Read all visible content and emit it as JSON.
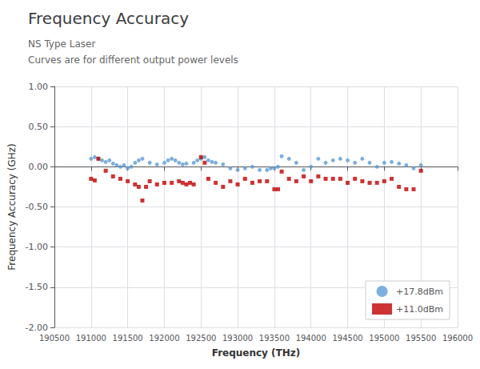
{
  "chart_data": {
    "type": "scatter",
    "title": "Frequency Accuracy",
    "subtitle": [
      "NS Type Laser",
      "Curves are for different output power levels"
    ],
    "x_label": "Frequency (THz)",
    "y_label": "Frequency Accuracy (GHz)",
    "xlim": [
      190500,
      196000
    ],
    "ylim": [
      -2.0,
      1.0
    ],
    "xticks": [
      190500,
      191000,
      191500,
      192000,
      192500,
      193000,
      193500,
      194000,
      194500,
      195000,
      195500,
      196000
    ],
    "yticks": [
      {
        "value": 1.0,
        "label": "1.00"
      },
      {
        "value": 0.5,
        "label": "0.50"
      },
      {
        "value": 0.0,
        "label": "0.00"
      },
      {
        "value": -0.5,
        "label": "-0.50"
      },
      {
        "value": -1.0,
        "label": "-1.00"
      },
      {
        "value": -1.5,
        "label": "-1.50"
      },
      {
        "value": -2.0,
        "label": "-2.00"
      }
    ],
    "grid": true,
    "legend": "lower right",
    "series": [
      {
        "name": "+17.8dBm",
        "color": "#5b9bd5",
        "marker": "circle",
        "x": [
          191000,
          191050,
          191100,
          191150,
          191200,
          191250,
          191300,
          191350,
          191400,
          191450,
          191500,
          191550,
          191600,
          191650,
          191700,
          191800,
          191900,
          192000,
          192050,
          192100,
          192150,
          192200,
          192250,
          192300,
          192400,
          192450,
          192500,
          192550,
          192600,
          192650,
          192700,
          192800,
          192900,
          193000,
          193100,
          193200,
          193300,
          193400,
          193450,
          193500,
          193550,
          193600,
          193700,
          193800,
          193900,
          194000,
          194100,
          194200,
          194300,
          194400,
          194500,
          194600,
          194700,
          194800,
          194900,
          195000,
          195100,
          195200,
          195300,
          195400,
          195500
        ],
        "values": [
          0.1,
          0.12,
          0.1,
          0.08,
          0.06,
          0.08,
          0.04,
          0.02,
          0.0,
          0.02,
          -0.02,
          0.0,
          0.05,
          0.08,
          0.1,
          0.05,
          0.03,
          0.05,
          0.08,
          0.1,
          0.08,
          0.05,
          0.03,
          0.04,
          0.05,
          0.08,
          0.1,
          0.12,
          0.08,
          0.06,
          0.05,
          0.03,
          -0.02,
          -0.04,
          -0.02,
          0.0,
          -0.04,
          -0.04,
          -0.02,
          -0.02,
          0.0,
          0.13,
          0.1,
          0.05,
          -0.04,
          0.0,
          0.1,
          0.05,
          0.08,
          0.1,
          0.08,
          0.05,
          0.1,
          0.05,
          0.0,
          0.05,
          0.06,
          0.04,
          0.02,
          -0.02,
          0.02
        ]
      },
      {
        "name": "+11.0dBm",
        "color": "#c00000",
        "marker": "square",
        "x": [
          191000,
          191050,
          191100,
          191200,
          191300,
          191400,
          191500,
          191600,
          191650,
          191700,
          191750,
          191800,
          191900,
          192000,
          192100,
          192200,
          192250,
          192300,
          192350,
          192400,
          192500,
          192550,
          192600,
          192700,
          192800,
          192900,
          193000,
          193100,
          193200,
          193300,
          193400,
          193500,
          193550,
          193600,
          193700,
          193800,
          193900,
          194000,
          194100,
          194200,
          194300,
          194400,
          194500,
          194600,
          194700,
          194800,
          194900,
          195000,
          195100,
          195200,
          195300,
          195400,
          195500
        ],
        "values": [
          -0.15,
          -0.17,
          0.1,
          -0.05,
          -0.12,
          -0.15,
          -0.18,
          -0.22,
          -0.25,
          -0.42,
          -0.25,
          -0.18,
          -0.22,
          -0.2,
          -0.2,
          -0.18,
          -0.2,
          -0.22,
          -0.2,
          -0.22,
          0.12,
          0.05,
          -0.15,
          -0.2,
          -0.25,
          -0.18,
          -0.22,
          -0.15,
          -0.2,
          -0.18,
          -0.18,
          -0.28,
          -0.28,
          -0.06,
          -0.15,
          -0.18,
          -0.12,
          -0.18,
          -0.12,
          -0.15,
          -0.15,
          -0.15,
          -0.2,
          -0.15,
          -0.18,
          -0.2,
          -0.2,
          -0.18,
          -0.15,
          -0.25,
          -0.28,
          -0.28,
          -0.05
        ]
      }
    ]
  }
}
